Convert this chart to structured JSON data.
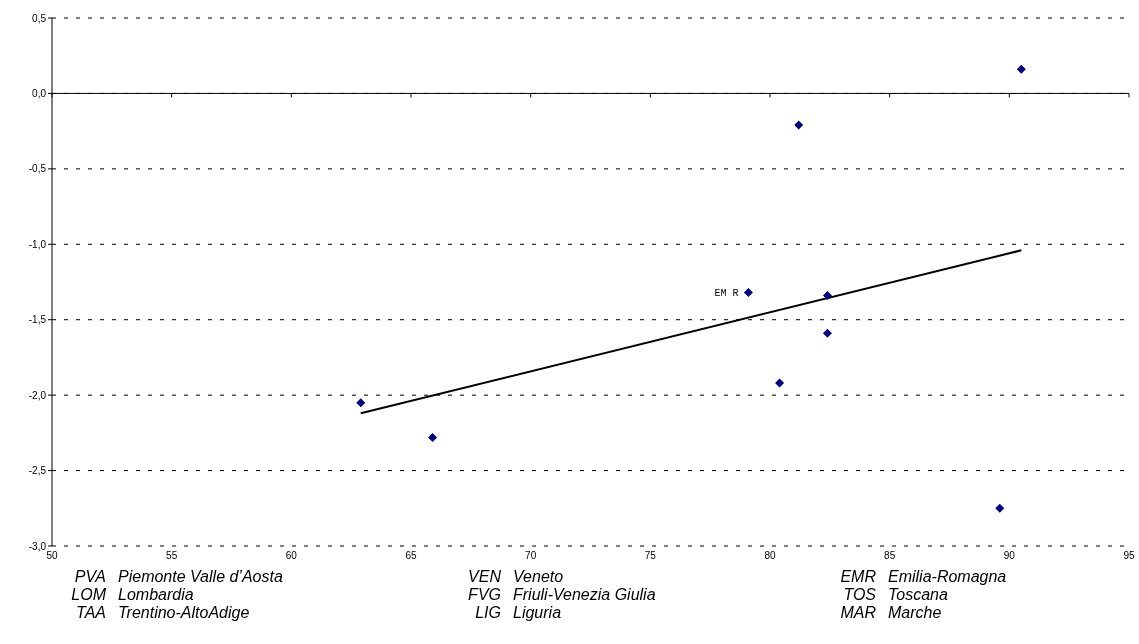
{
  "chart_data": {
    "type": "scatter",
    "xlim": [
      50,
      95
    ],
    "xticks": [
      50,
      55,
      60,
      65,
      70,
      75,
      80,
      85,
      90,
      95
    ],
    "ylim": [
      -3,
      0.5
    ],
    "yticks": [
      {
        "value": 0.5,
        "label": "0,5"
      },
      {
        "value": 0,
        "label": "0,0"
      },
      {
        "value": -0.5,
        "label": "-0,5"
      },
      {
        "value": -1,
        "label": "-1,0"
      },
      {
        "value": -1.5,
        "label": "-1,5"
      },
      {
        "value": -2,
        "label": "-2,0"
      },
      {
        "value": -2.5,
        "label": "-2,5"
      },
      {
        "value": -3,
        "label": "-3,0"
      }
    ],
    "grid": "y",
    "marker": "diamond",
    "series": [
      {
        "color": "#000080",
        "x": [
          90.5,
          81.2,
          79.1,
          82.4,
          82.4,
          80.4,
          89.6,
          62.9,
          65.9
        ],
        "values": [
          0.16,
          -0.21,
          -1.32,
          -1.34,
          -1.59,
          -1.92,
          -2.75,
          -2.05,
          -2.28
        ]
      },
      {
        "type": "line",
        "color": "#000000",
        "marker": "none",
        "line_style": "solid",
        "x": [
          62.9,
          90.5
        ],
        "values": [
          -2.12,
          -1.04
        ]
      }
    ],
    "annotations": [
      {
        "text": "EM R",
        "x": 79.1,
        "y": -1.32
      },
      "PVA Piemonte Valle d’Aosta",
      "VEN Veneto",
      "EMR Emilia-Romagna",
      "LOM Lombardia",
      "FVG Friuli-Venezia Giulia",
      "TOS Toscana",
      "TAA Trentino-AltoAdige",
      "LIG Liguria",
      "MAR Marche"
    ]
  }
}
